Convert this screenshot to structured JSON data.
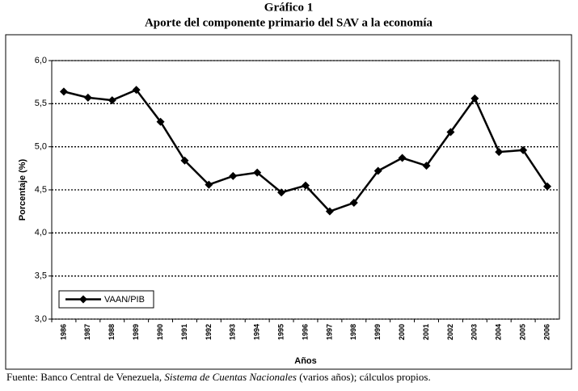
{
  "chart_data": {
    "type": "line",
    "title": "Gráfico 1",
    "subtitle": "Aporte del componente primario del SAV a la economía",
    "y_label": "Porcentaje (%)",
    "x_label": "Años",
    "source_prefix": "Fuente: Banco Central de Venezuela, ",
    "source_italic": "Sistema de Cuentas Nacionales",
    "source_suffix": " (varios años); cálculos propios.",
    "categories": [
      "1986",
      "1987",
      "1988",
      "1989",
      "1990",
      "1991",
      "1992",
      "1993",
      "1994",
      "1995",
      "1996",
      "1997",
      "1998",
      "1999",
      "2000",
      "2001",
      "2002",
      "2003",
      "2004",
      "2005",
      "2006"
    ],
    "series": [
      {
        "name": "VAAN/PIB",
        "color": "#000000",
        "values": [
          5.64,
          5.57,
          5.54,
          5.66,
          5.29,
          4.84,
          4.56,
          4.66,
          4.7,
          4.47,
          4.55,
          4.25,
          4.35,
          4.72,
          4.87,
          4.78,
          5.17,
          5.56,
          4.94,
          4.96,
          4.54
        ]
      }
    ],
    "ylim": [
      3.0,
      6.0
    ],
    "yticks": [
      {
        "value": 3.0,
        "label": "3,0"
      },
      {
        "value": 3.5,
        "label": "3,5"
      },
      {
        "value": 4.0,
        "label": "4,0"
      },
      {
        "value": 4.5,
        "label": "4,5"
      },
      {
        "value": 5.0,
        "label": "5,0"
      },
      {
        "value": 5.5,
        "label": "5,5"
      },
      {
        "value": 6.0,
        "label": "6,0"
      }
    ],
    "grid": true,
    "legend": "lower-left"
  }
}
